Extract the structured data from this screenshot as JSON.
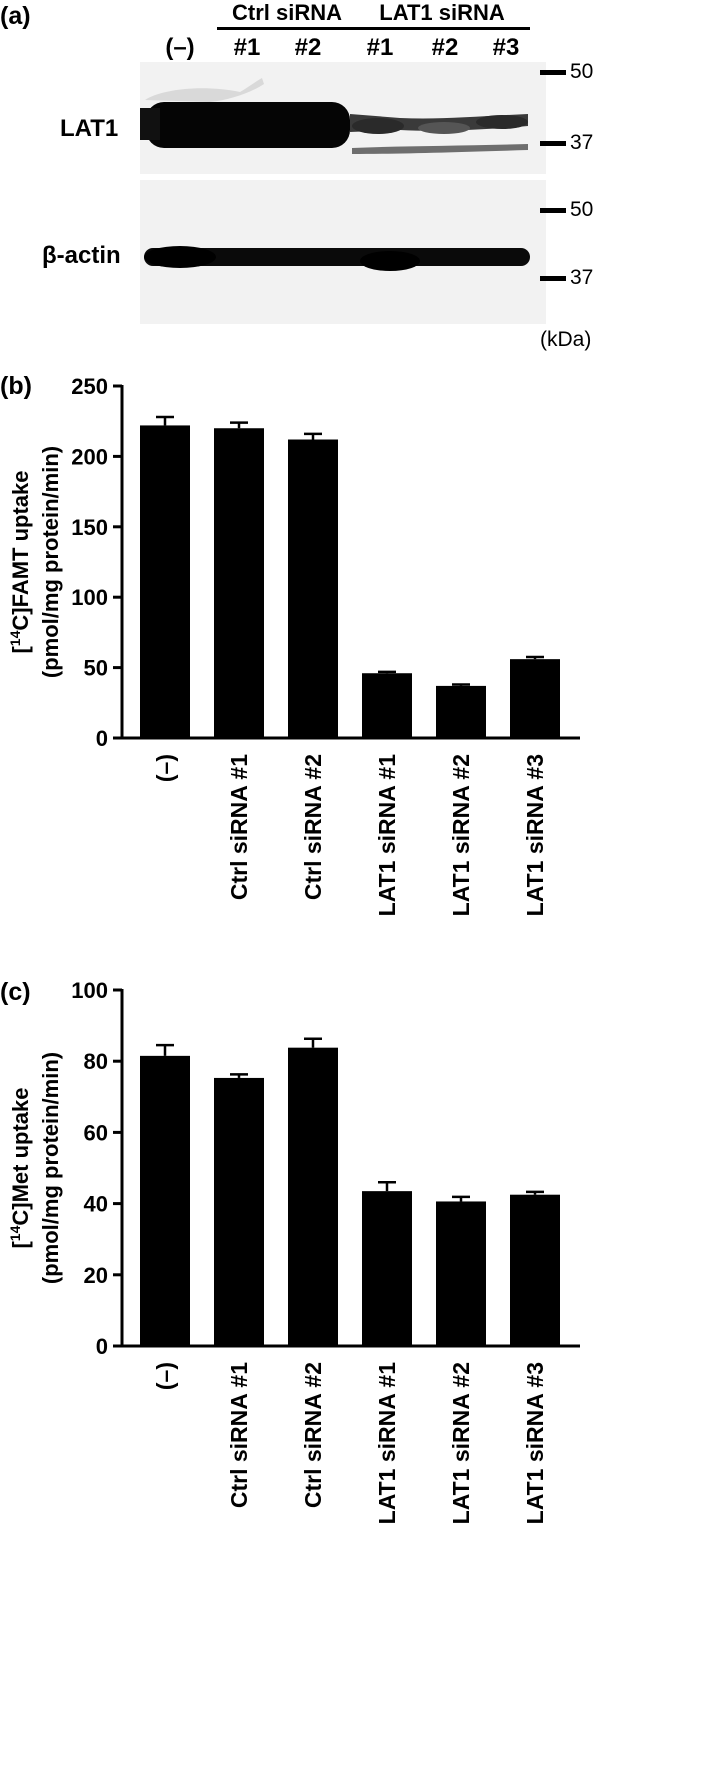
{
  "panel_a": {
    "label": "(a)",
    "group_ctrl": "Ctrl siRNA",
    "group_lat1": "LAT1 siRNA",
    "lanes": [
      "(–)",
      "#1",
      "#2",
      "#1",
      "#2",
      "#3"
    ],
    "blot_lat1_label": "LAT1",
    "blot_actin_label": "β-actin",
    "markers_top": [
      "50",
      "37"
    ],
    "markers_bottom": [
      "50",
      "37"
    ],
    "unit": "(kDa)"
  },
  "panel_b": {
    "label": "(b)"
  },
  "panel_c": {
    "label": "(c)"
  },
  "chart_data": [
    {
      "type": "bar",
      "panel": "b",
      "ylabel_line1_parts": [
        "[",
        "14",
        "C]FAMT uptake"
      ],
      "ylabel_line2": "(pmol/mg protein/min)",
      "categories": [
        "(–)",
        "Ctrl siRNA #1",
        "Ctrl siRNA #2",
        "LAT1 siRNA #1",
        "LAT1 siRNA #2",
        "LAT1 siRNA #3"
      ],
      "values": [
        222,
        220,
        212,
        46,
        37,
        56
      ],
      "errors": [
        6,
        4,
        4,
        1,
        1,
        1.5
      ],
      "ylim": [
        0,
        250
      ],
      "yticks": [
        "0",
        "50",
        "100",
        "150",
        "200",
        "250"
      ],
      "ytick_values": [
        0,
        50,
        100,
        150,
        200,
        250
      ],
      "bar_color": "#000000",
      "grid": false,
      "legend": "none"
    },
    {
      "type": "bar",
      "panel": "c",
      "ylabel_line1_parts": [
        "[",
        "14",
        "C]Met uptake"
      ],
      "ylabel_line2": "(pmol/mg protein/min)",
      "categories": [
        "(–)",
        "Ctrl siRNA #1",
        "Ctrl siRNA #2",
        "LAT1 siRNA #1",
        "LAT1 siRNA #2",
        "LAT1 siRNA #3"
      ],
      "values": [
        81.5,
        75.3,
        83.8,
        43.5,
        40.6,
        42.5
      ],
      "errors": [
        3,
        1,
        2.5,
        2.5,
        1.3,
        0.8
      ],
      "ylim": [
        0,
        100
      ],
      "yticks": [
        "0",
        "20",
        "40",
        "60",
        "80",
        "100"
      ],
      "ytick_values": [
        0,
        20,
        40,
        60,
        80,
        100
      ],
      "bar_color": "#000000",
      "grid": false,
      "legend": "none"
    }
  ]
}
